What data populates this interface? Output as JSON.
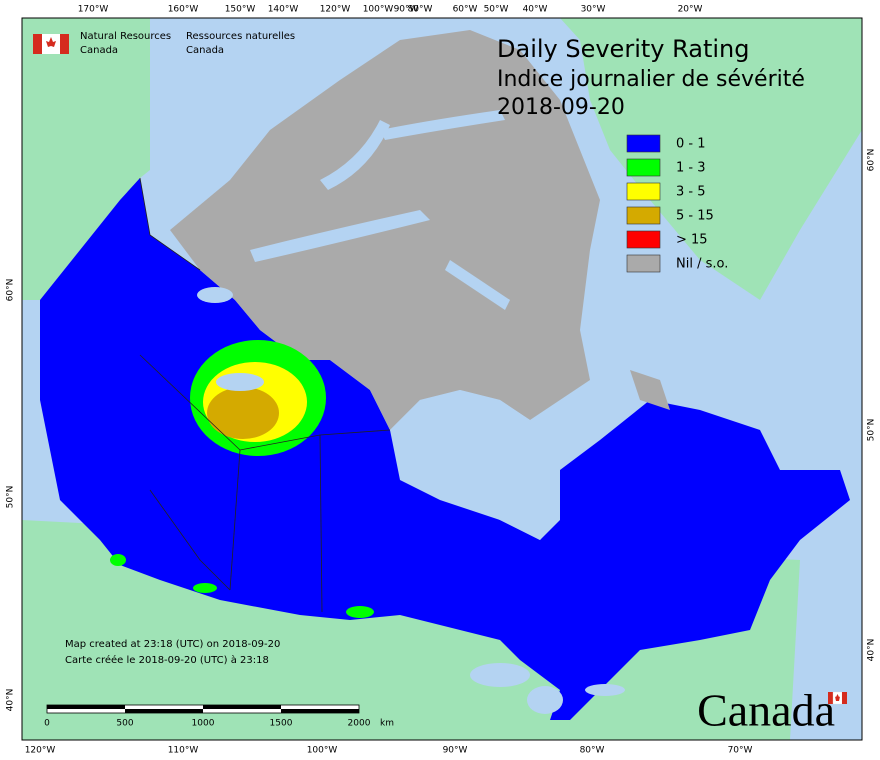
{
  "agency": {
    "en_line1": "Natural Resources",
    "en_line2": "Canada",
    "fr_line1": "Ressources naturelles",
    "fr_line2": "Canada"
  },
  "title": {
    "line1": "Daily Severity Rating",
    "line2": "Indice journalier de sévérité",
    "date": "2018-09-20"
  },
  "legend": [
    {
      "label": "0 - 1",
      "color": "#0000ff"
    },
    {
      "label": "1 - 3",
      "color": "#00ff00"
    },
    {
      "label": "3 - 5",
      "color": "#ffff00"
    },
    {
      "label": "5 - 15",
      "color": "#d4aa00"
    },
    {
      "label": "> 15",
      "color": "#ff0000"
    },
    {
      "label": "Nil / s.o.",
      "color": "#aaaaaa"
    }
  ],
  "graticule": {
    "top": [
      "170°W",
      "160°W",
      "150°W",
      "140°W",
      "120°W",
      "100°W",
      "90°W",
      "80°W",
      "60°W",
      "50°W",
      "40°W",
      "30°W",
      "20°W"
    ],
    "bottom": [
      "120°W",
      "110°W",
      "100°W",
      "90°W",
      "80°W",
      "70°W"
    ],
    "left": [
      "60°N",
      "50°N",
      "40°N"
    ],
    "right": [
      "60°N",
      "50°N",
      "40°N"
    ]
  },
  "footer": {
    "created_en": "Map created at 23:18 (UTC) on 2018-09-20",
    "created_fr": "Carte créée le 2018-09-20 (UTC) à 23:18"
  },
  "scale_bar": {
    "labels": [
      "0",
      "500",
      "1000",
      "1500",
      "2000"
    ],
    "unit": "km"
  },
  "wordmark": "Canada"
}
